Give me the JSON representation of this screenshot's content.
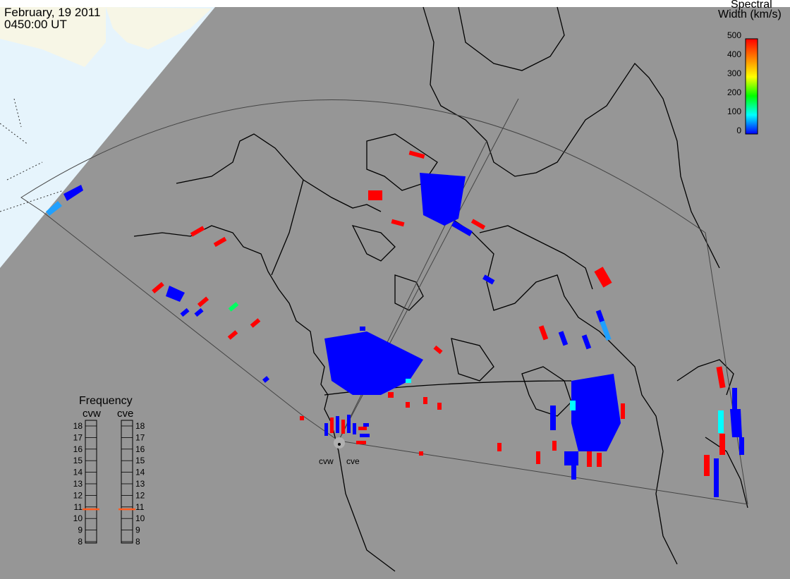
{
  "header": {
    "date": "February, 19 2011",
    "time": "0450:00 UT"
  },
  "colorbar": {
    "title_line1": "Spectral",
    "title_line2": "Width (km/s)",
    "ticks": [
      "500",
      "400",
      "300",
      "200",
      "100",
      "0"
    ],
    "colors": [
      "#0000ff",
      "#00ffff",
      "#00ff00",
      "#ffff00",
      "#ff8000",
      "#ff0000"
    ]
  },
  "frequency_panel": {
    "title": "Frequency",
    "radars": [
      "cvw",
      "cve"
    ],
    "ticks": [
      "18",
      "17",
      "16",
      "15",
      "14",
      "13",
      "12",
      "11",
      "10",
      "9",
      "8"
    ],
    "cvw_mhz": 10.8,
    "cve_mhz": 10.8,
    "marker_color": "#ff5a1e"
  },
  "stations": {
    "cvw": "cvw",
    "cve": "cve"
  },
  "colors": {
    "ocean_land": "#969696",
    "night_terminator": "#e6f4fc",
    "day_land": "#f7f6e6",
    "coastline": "#000000",
    "low_width": "#0000ff",
    "high_width": "#ff0000"
  }
}
